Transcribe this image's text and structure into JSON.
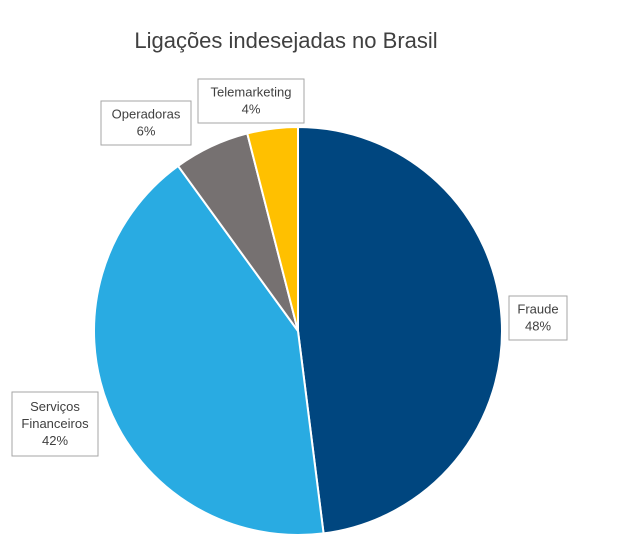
{
  "chart_data": {
    "type": "pie",
    "title": "Ligações indesejadas no Brasil",
    "start_angle_deg": 0,
    "direction": "clockwise",
    "slices": [
      {
        "name": "Fraude",
        "value": 48,
        "label": "48%",
        "color": "#00467F"
      },
      {
        "name": "Serviços Financeiros",
        "label_lines": [
          "Serviços",
          "Financeiros"
        ],
        "value": 42,
        "label": "42%",
        "color": "#29ABE2"
      },
      {
        "name": "Operadoras",
        "value": 6,
        "label": "6%",
        "color": "#767171"
      },
      {
        "name": "Telemarketing",
        "value": 4,
        "label": "4%",
        "color": "#FFC000"
      }
    ]
  }
}
